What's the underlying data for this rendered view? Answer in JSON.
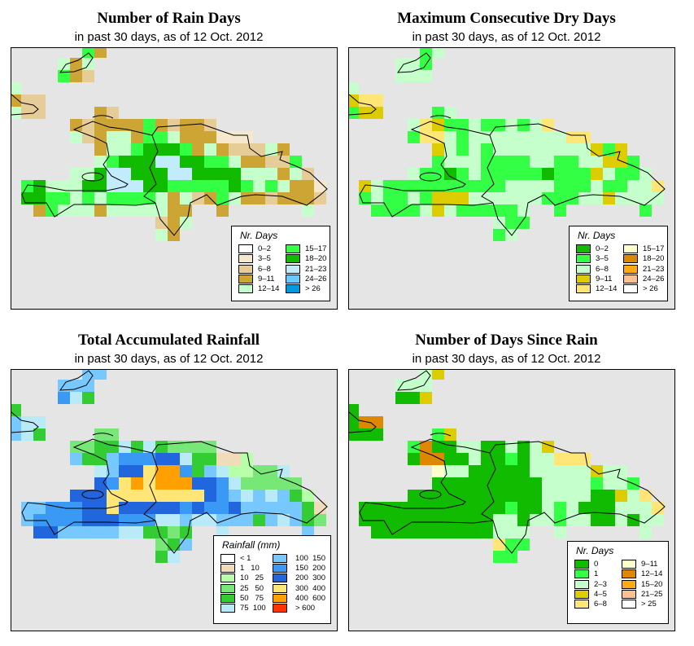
{
  "chart_data": [
    {
      "type": "heatmap",
      "title": "Number of Rain Days",
      "subtitle": "in past 30 days, as of  12 Oct. 2012",
      "legend_title": "Nr. Days",
      "legend": [
        {
          "label": "0–2",
          "color": "#ffffff"
        },
        {
          "label": "3–5",
          "color": "#f6e8cc"
        },
        {
          "label": "6–8",
          "color": "#e6cc96"
        },
        {
          "label": "9–11",
          "color": "#cda535"
        },
        {
          "label": "12–14",
          "color": "#c4ffcc"
        },
        {
          "label": "15–17",
          "color": "#33ff44"
        },
        {
          "label": "18–20",
          "color": "#11bb00"
        },
        {
          "label": "21–23",
          "color": "#c2ecfc"
        },
        {
          "label": "24–26",
          "color": "#6cc8ff"
        },
        {
          "label": "> 26",
          "color": "#0099dd"
        }
      ],
      "grid": [
        "......53...................",
        "....434....................",
        "....532....................",
        "4..........................",
        "322........................",
        "422....32..................",
        ".....323333532332..........",
        ".....423443554333111.......",
        ".......3445666534322243....",
        ".......45666776655433225...",
        ".....44677666776666444342..",
        ".5644466777665555565454331.",
        ".6655454555543423543323332.",
        "..3544434444433..3......4..",
        "............234............",
        "............43............."
      ]
    },
    {
      "type": "heatmap",
      "title": "Maximum Consecutive Dry Days",
      "subtitle": "in past 30 days, as of  12 Oct. 2012",
      "legend_title": "Nr. Days",
      "legend": [
        {
          "label": "0–2",
          "color": "#11bb00"
        },
        {
          "label": "3–5",
          "color": "#33ff44"
        },
        {
          "label": "6–8",
          "color": "#c4ffcc"
        },
        {
          "label": "9–11",
          "color": "#ddcc00"
        },
        {
          "label": "12–14",
          "color": "#ffe677"
        },
        {
          "label": "15–17",
          "color": "#ffffcc"
        },
        {
          "label": "18–20",
          "color": "#dd8800"
        },
        {
          "label": "21–23",
          "color": "#ffaa11"
        },
        {
          "label": "24–26",
          "color": "#ffc090"
        },
        {
          "label": "> 26",
          "color": "#ffffff"
        }
      ],
      "grid": [
        "......12...................",
        "....221....................",
        "....222....................",
        "2..........................",
        "344........................",
        "133....12..................",
        ".....243112112124..........",
        ".....144212222222244.......",
        ".......3212122222222313....",
        ".......12221111221122331...",
        ".....21101211111011132112..",
        ".3211111111112222111211224.",
        ".1211213332222221112232222.",
        "..1111232111112..1......1..",
        "............211............",
        "............12............."
      ]
    },
    {
      "type": "heatmap",
      "title": "Total Accumulated Rainfall",
      "subtitle": "in past 30 days, as of  12 Oct. 2012",
      "legend_title": "Rainfall (mm)",
      "legend": [
        {
          "label": "< 1",
          "color": "#ffffff"
        },
        {
          "label": "1   10",
          "color": "#f0dcb8"
        },
        {
          "label": "10   25",
          "color": "#b8ffaa"
        },
        {
          "label": "25   50",
          "color": "#77e877"
        },
        {
          "label": "50   75",
          "color": "#33cc33"
        },
        {
          "label": "75  100",
          "color": "#b8eaf8"
        },
        {
          "label": "100  150",
          "color": "#77c8ff"
        },
        {
          "label": "150  200",
          "color": "#3a99f5"
        },
        {
          "label": "200  300",
          "color": "#2266dd"
        },
        {
          "label": "300  400",
          "color": "#ffe677"
        },
        {
          "label": "400  600",
          "color": "#ffa000"
        },
        {
          "label": "> 600",
          "color": "#ff3300"
        }
      ],
      "grid": [
        "......66...................",
        "....666....................",
        "....754....................",
        "4..........................",
        "655........................",
        "654....33..................",
        ".....334454543333..........",
        ".....644677788544112.......",
        ".......56889AA746522335....",
        ".......879A9AAA887533333...",
        ".....88899999999876565642..",
        ".6677788988888787786666641.",
        ".6777788877755655666465643.",
        "..8866666554434..5......6..",
        "............346............",
        "............45............."
      ]
    },
    {
      "type": "heatmap",
      "title": "Number of Days Since Rain",
      "subtitle": "in past 30 days, as of  12 Oct. 2012",
      "legend_title": "Nr. Days",
      "legend": [
        {
          "label": "0",
          "color": "#11bb00"
        },
        {
          "label": "1",
          "color": "#33ff44"
        },
        {
          "label": "2–3",
          "color": "#c4ffcc"
        },
        {
          "label": "4–5",
          "color": "#ddcc00"
        },
        {
          "label": "6–8",
          "color": "#ffe677"
        },
        {
          "label": "9–11",
          "color": "#ffffcc"
        },
        {
          "label": "12–14",
          "color": "#dd8800"
        },
        {
          "label": "15–20",
          "color": "#ffaa11"
        },
        {
          "label": "21–25",
          "color": "#ffc090"
        },
        {
          "label": "> 25",
          "color": "#ffffff"
        }
      ],
      "grid": [
        "......23...................",
        "....222....................",
        "....003....................",
        "0..........................",
        "066........................",
        "000....13..................",
        ".....160022002023..........",
        ".....066002001022444.......",
        ".......5220000022222322....",
        ".......00000000022221221...",
        ".....00000000000222200324..",
        ".0000000000001002120002224.",
        ".0000000000022022122002022.",
        "..0000000000222..2......2..",
        "............411............",
        "............11............."
      ]
    }
  ]
}
